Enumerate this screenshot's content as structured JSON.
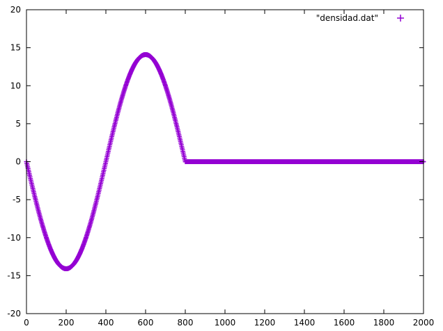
{
  "chart_data": {
    "type": "scatter",
    "x_range": [
      0,
      2000
    ],
    "y_range": [
      -20,
      20
    ],
    "x_ticks": [
      0,
      200,
      400,
      600,
      800,
      1000,
      1200,
      1400,
      1600,
      1800,
      2000
    ],
    "y_ticks": [
      -20,
      -15,
      -10,
      -5,
      0,
      5,
      10,
      15,
      20
    ],
    "grid": false,
    "legend_position": "top-right",
    "marker": "+",
    "series": [
      {
        "name": "\"densidad.dat\"",
        "color": "#9400d3",
        "x": [
          0,
          10,
          20,
          30,
          40,
          50,
          60,
          70,
          80,
          90,
          100,
          110,
          120,
          130,
          140,
          150,
          160,
          170,
          180,
          190,
          200,
          210,
          220,
          230,
          240,
          250,
          260,
          270,
          280,
          290,
          300,
          310,
          320,
          330,
          340,
          350,
          360,
          370,
          380,
          390,
          400,
          410,
          420,
          430,
          440,
          450,
          460,
          470,
          480,
          490,
          500,
          510,
          520,
          530,
          540,
          550,
          560,
          570,
          580,
          590,
          600,
          610,
          620,
          630,
          640,
          650,
          660,
          670,
          680,
          690,
          700,
          710,
          720,
          730,
          740,
          750,
          760,
          770,
          780,
          790,
          800,
          810,
          820,
          830,
          840,
          850,
          860,
          870,
          880,
          890,
          900,
          910,
          920,
          930,
          940,
          950,
          960,
          970,
          980,
          990,
          1000,
          1020,
          1040,
          1060,
          1080,
          1100,
          1120,
          1140,
          1160,
          1180,
          1200,
          1220,
          1240,
          1260,
          1280,
          1300,
          1320,
          1340,
          1360,
          1380,
          1400,
          1420,
          1440,
          1460,
          1480,
          1500,
          1520,
          1540,
          1560,
          1580,
          1600,
          1620,
          1640,
          1660,
          1680,
          1700,
          1720,
          1740,
          1760,
          1780,
          1800,
          1820,
          1840,
          1860,
          1880,
          1900,
          1920,
          1940,
          1960,
          1980,
          2000
        ],
        "y": [
          0.0,
          -1.12,
          -2.23,
          -3.32,
          -4.39,
          -5.43,
          -6.44,
          -7.41,
          -8.33,
          -9.19,
          -10.0,
          -10.75,
          -11.43,
          -12.04,
          -12.58,
          -13.04,
          -13.42,
          -13.71,
          -13.93,
          -14.06,
          -14.1,
          -14.06,
          -13.93,
          -13.71,
          -13.42,
          -13.04,
          -12.58,
          -12.04,
          -11.43,
          -10.75,
          -10.0,
          -9.19,
          -8.33,
          -7.41,
          -6.44,
          -5.43,
          -4.39,
          -3.32,
          -2.23,
          -1.12,
          0.0,
          1.12,
          2.23,
          3.32,
          4.39,
          5.43,
          6.44,
          7.41,
          8.33,
          9.19,
          10.0,
          10.75,
          11.43,
          12.04,
          12.58,
          13.04,
          13.42,
          13.71,
          13.93,
          14.06,
          14.1,
          14.06,
          13.93,
          13.71,
          13.42,
          13.04,
          12.58,
          12.04,
          11.43,
          10.75,
          10.0,
          9.19,
          8.33,
          7.41,
          6.44,
          5.43,
          4.39,
          3.32,
          2.23,
          1.12,
          0.0,
          0,
          0,
          0,
          0,
          0,
          0,
          0,
          0,
          0,
          0,
          0,
          0,
          0,
          0,
          0,
          0,
          0,
          0,
          0,
          0,
          0,
          0,
          0,
          0,
          0,
          0,
          0,
          0,
          0,
          0,
          0,
          0,
          0,
          0,
          0,
          0,
          0,
          0,
          0,
          0,
          0,
          0,
          0,
          0,
          0,
          0,
          0,
          0,
          0,
          0,
          0,
          0,
          0,
          0,
          0,
          0,
          0,
          0,
          0,
          0,
          0,
          0,
          0,
          0,
          0,
          0,
          0,
          0,
          0,
          0
        ]
      }
    ]
  }
}
